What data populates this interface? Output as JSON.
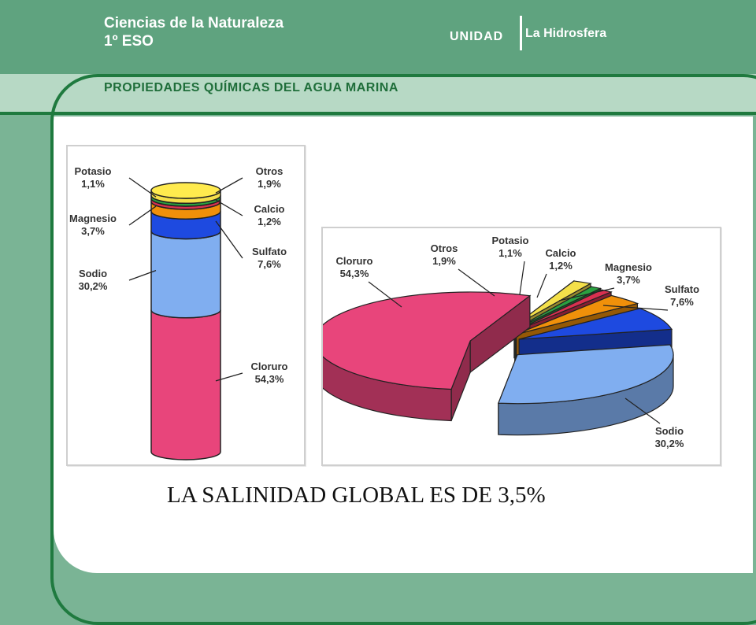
{
  "header": {
    "subject_line1": "Ciencias de la Naturaleza",
    "subject_line2": "1º ESO",
    "unit_label": "UNIDAD",
    "unit_name": "La Hidrosfera",
    "section_title": "PROPIEDADES QUÍMICAS DEL AGUA MARINA"
  },
  "caption": "LA SALINIDAD GLOBAL ES DE 3,5%",
  "colors": {
    "cloruro": "#e8457b",
    "sodio": "#80aef0",
    "sulfato": "#1e4ae0",
    "magnesio": "#f0900a",
    "calcio": "#d93050",
    "potasio": "#2aa040",
    "otros": "#f4e04a"
  },
  "chart_data": [
    {
      "type": "bar",
      "subtype": "stacked-cylinder",
      "categories": [
        "Cloruro",
        "Sodio",
        "Sulfato",
        "Magnesio",
        "Calcio",
        "Potasio",
        "Otros"
      ],
      "values": [
        54.3,
        30.2,
        7.6,
        3.7,
        1.2,
        1.1,
        1.9
      ],
      "value_labels": [
        "54,3%",
        "30,2%",
        "7,6%",
        "3,7%",
        "1,2%",
        "1,1%",
        "1,9%"
      ],
      "unit": "%"
    },
    {
      "type": "pie",
      "subtype": "3d-exploded",
      "categories": [
        "Cloruro",
        "Sodio",
        "Sulfato",
        "Magnesio",
        "Calcio",
        "Potasio",
        "Otros"
      ],
      "values": [
        54.3,
        30.2,
        7.6,
        3.7,
        1.2,
        1.1,
        1.9
      ],
      "value_labels": [
        "54,3%",
        "30,2%",
        "7,6%",
        "3,7%",
        "1,2%",
        "1,1%",
        "1,9%"
      ],
      "unit": "%"
    }
  ]
}
